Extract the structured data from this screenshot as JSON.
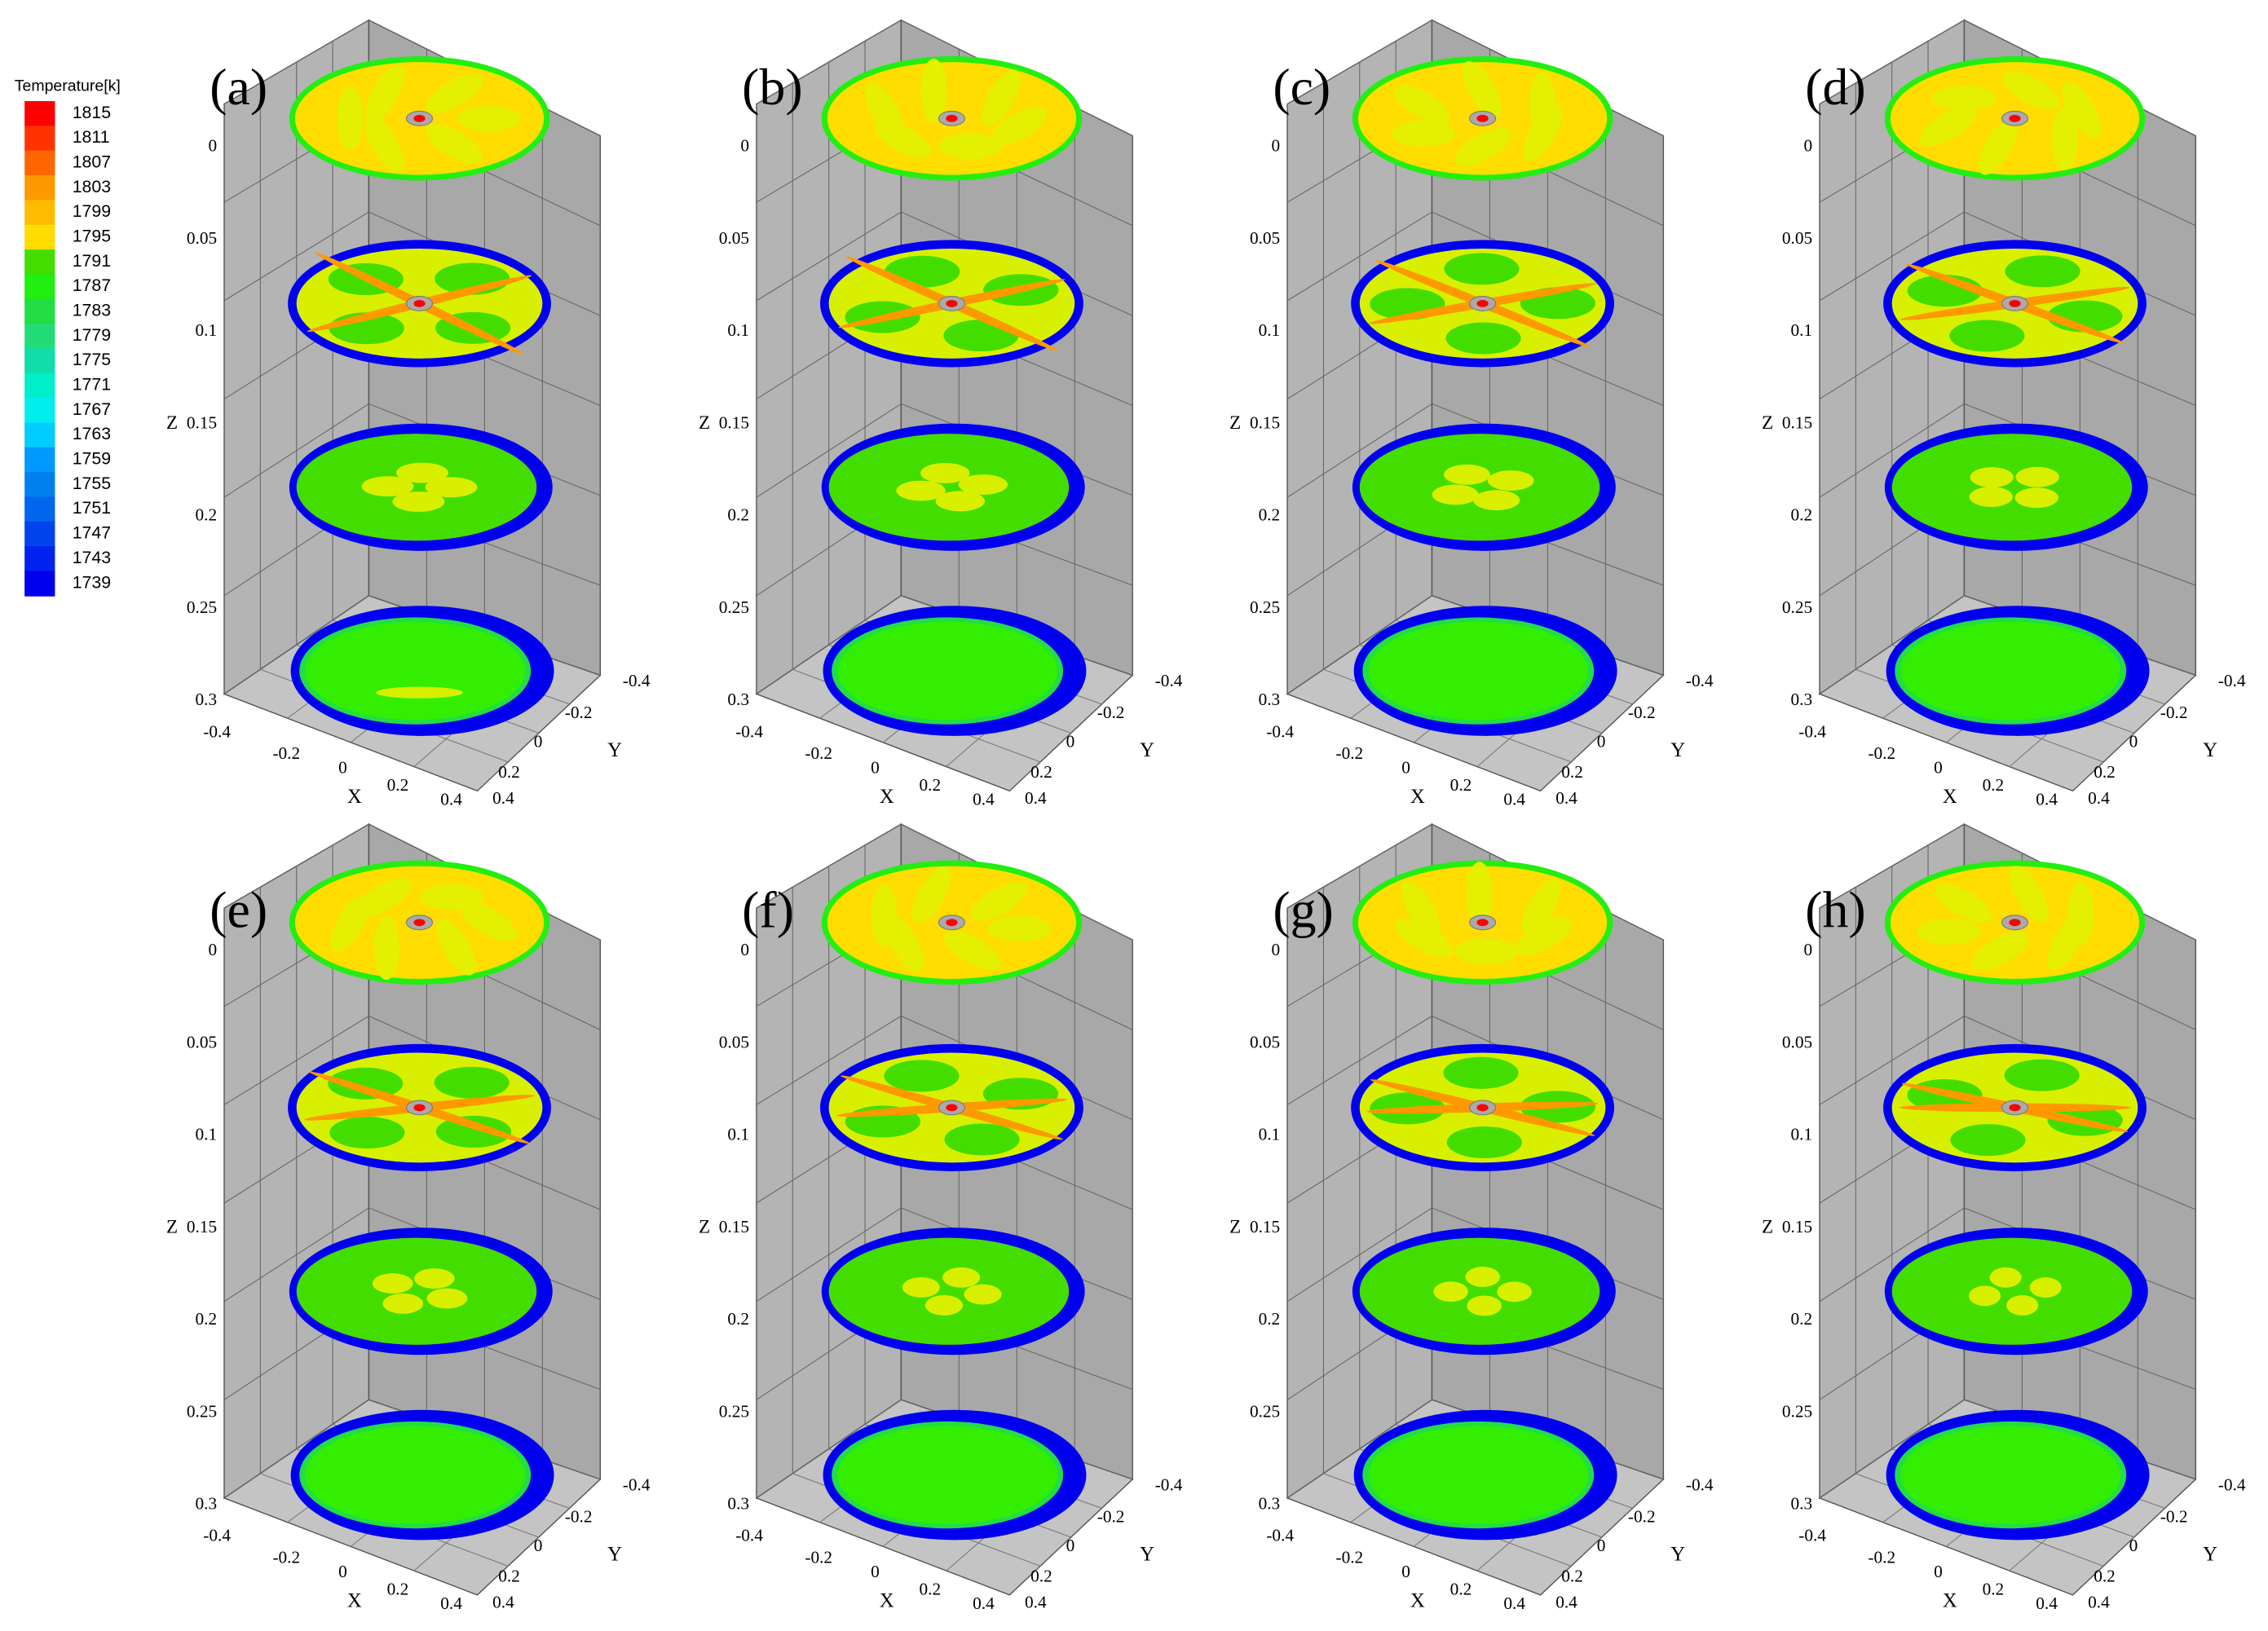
{
  "legend": {
    "title": "Temperature[k]",
    "levels": [
      1815,
      1811,
      1807,
      1803,
      1799,
      1795,
      1791,
      1787,
      1783,
      1779,
      1775,
      1771,
      1767,
      1763,
      1759,
      1755,
      1751,
      1747,
      1743,
      1739
    ],
    "colors": [
      "#ff0000",
      "#ff3300",
      "#ff6600",
      "#ff9900",
      "#ffbb00",
      "#ffdd00",
      "#44dd00",
      "#22ee11",
      "#22dd44",
      "#22dd77",
      "#11ddaa",
      "#00eecc",
      "#00eeee",
      "#00ccff",
      "#0099ff",
      "#0080ee",
      "#0066ee",
      "#0044ee",
      "#0022ee",
      "#0000ee"
    ]
  },
  "axes": {
    "z_label": "Z",
    "z_ticks": [
      0,
      0.05,
      0.1,
      0.15,
      0.2,
      0.25,
      0.3
    ],
    "x_label": "X",
    "x_ticks": [
      -0.4,
      -0.2,
      0,
      0.2,
      0.4
    ],
    "y_label": "Y",
    "y_ticks": [
      -0.4,
      -0.2,
      0,
      0.2,
      0.4
    ]
  },
  "panels": [
    {
      "label": "(a)"
    },
    {
      "label": "(b)"
    },
    {
      "label": "(c)"
    },
    {
      "label": "(d)"
    },
    {
      "label": "(e)"
    },
    {
      "label": "(f)"
    },
    {
      "label": "(g)"
    },
    {
      "label": "(h)"
    }
  ]
}
